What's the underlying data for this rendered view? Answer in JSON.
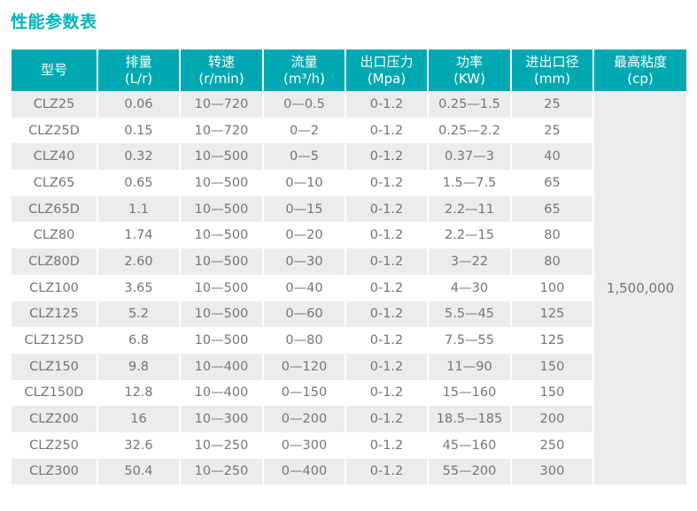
{
  "title": "性能参数表",
  "colors": {
    "title_teal": "#00b4be",
    "header_teal": "#00a9b2",
    "row_alt_gray": "#ececec",
    "data_text_gray": "#757575"
  },
  "table": {
    "columns": [
      {
        "key": "model",
        "label": "型号",
        "unit": ""
      },
      {
        "key": "displacement",
        "label": "排量",
        "unit": "(L/r)"
      },
      {
        "key": "speed",
        "label": "转速",
        "unit": "(r/min)"
      },
      {
        "key": "flow",
        "label": "流量",
        "unit": "(m³/h)"
      },
      {
        "key": "outlet-pressure",
        "label": "出口压力",
        "unit": "(Mpa)"
      },
      {
        "key": "power",
        "label": "功率",
        "unit": "(KW)"
      },
      {
        "key": "port-diameter",
        "label": "进出口径",
        "unit": "(mm)"
      },
      {
        "key": "max-viscosity",
        "label": "最高粘度",
        "unit": "(cp)"
      }
    ],
    "rows": [
      [
        "CLZ25",
        "0.06",
        "10—720",
        "0—0.5",
        "0-1.2",
        "0.25—1.5",
        "25"
      ],
      [
        "CLZ25D",
        "0.15",
        "10—720",
        "0—2",
        "0-1.2",
        "0.25—2.2",
        "25"
      ],
      [
        "CLZ40",
        "0.32",
        "10—500",
        "0—5",
        "0-1.2",
        "0.37—3",
        "40"
      ],
      [
        "CLZ65",
        "0.65",
        "10—500",
        "0—10",
        "0-1.2",
        "1.5—7.5",
        "65"
      ],
      [
        "CLZ65D",
        "1.1",
        "10—500",
        "0—15",
        "0-1.2",
        "2.2—11",
        "65"
      ],
      [
        "CLZ80",
        "1.74",
        "10—500",
        "0—20",
        "0-1.2",
        "2.2—15",
        "80"
      ],
      [
        "CLZ80D",
        "2.60",
        "10—500",
        "0—30",
        "0-1.2",
        "3—22",
        "80"
      ],
      [
        "CLZ100",
        "3.65",
        "10—500",
        "0—40",
        "0-1.2",
        "4—30",
        "100"
      ],
      [
        "CLZ125",
        "5.2",
        "10—500",
        "0—60",
        "0-1.2",
        "5.5—45",
        "125"
      ],
      [
        "CLZ125D",
        "6.8",
        "10—500",
        "0—80",
        "0-1.2",
        "7.5—55",
        "125"
      ],
      [
        "CLZ150",
        "9.8",
        "10—400",
        "0—120",
        "0-1.2",
        "11—90",
        "150"
      ],
      [
        "CLZ150D",
        "12.8",
        "10—400",
        "0—150",
        "0-1.2",
        "15—160",
        "150"
      ],
      [
        "CLZ200",
        "16",
        "10—300",
        "0—200",
        "0-1.2",
        "18.5—185",
        "200"
      ],
      [
        "CLZ250",
        "32.6",
        "10—250",
        "0—300",
        "0-1.2",
        "45—160",
        "250"
      ],
      [
        "CLZ300",
        "50.4",
        "10—250",
        "0—400",
        "0-1.2",
        "55—200",
        "300"
      ]
    ],
    "merged_max_viscosity": "1,500,000"
  }
}
